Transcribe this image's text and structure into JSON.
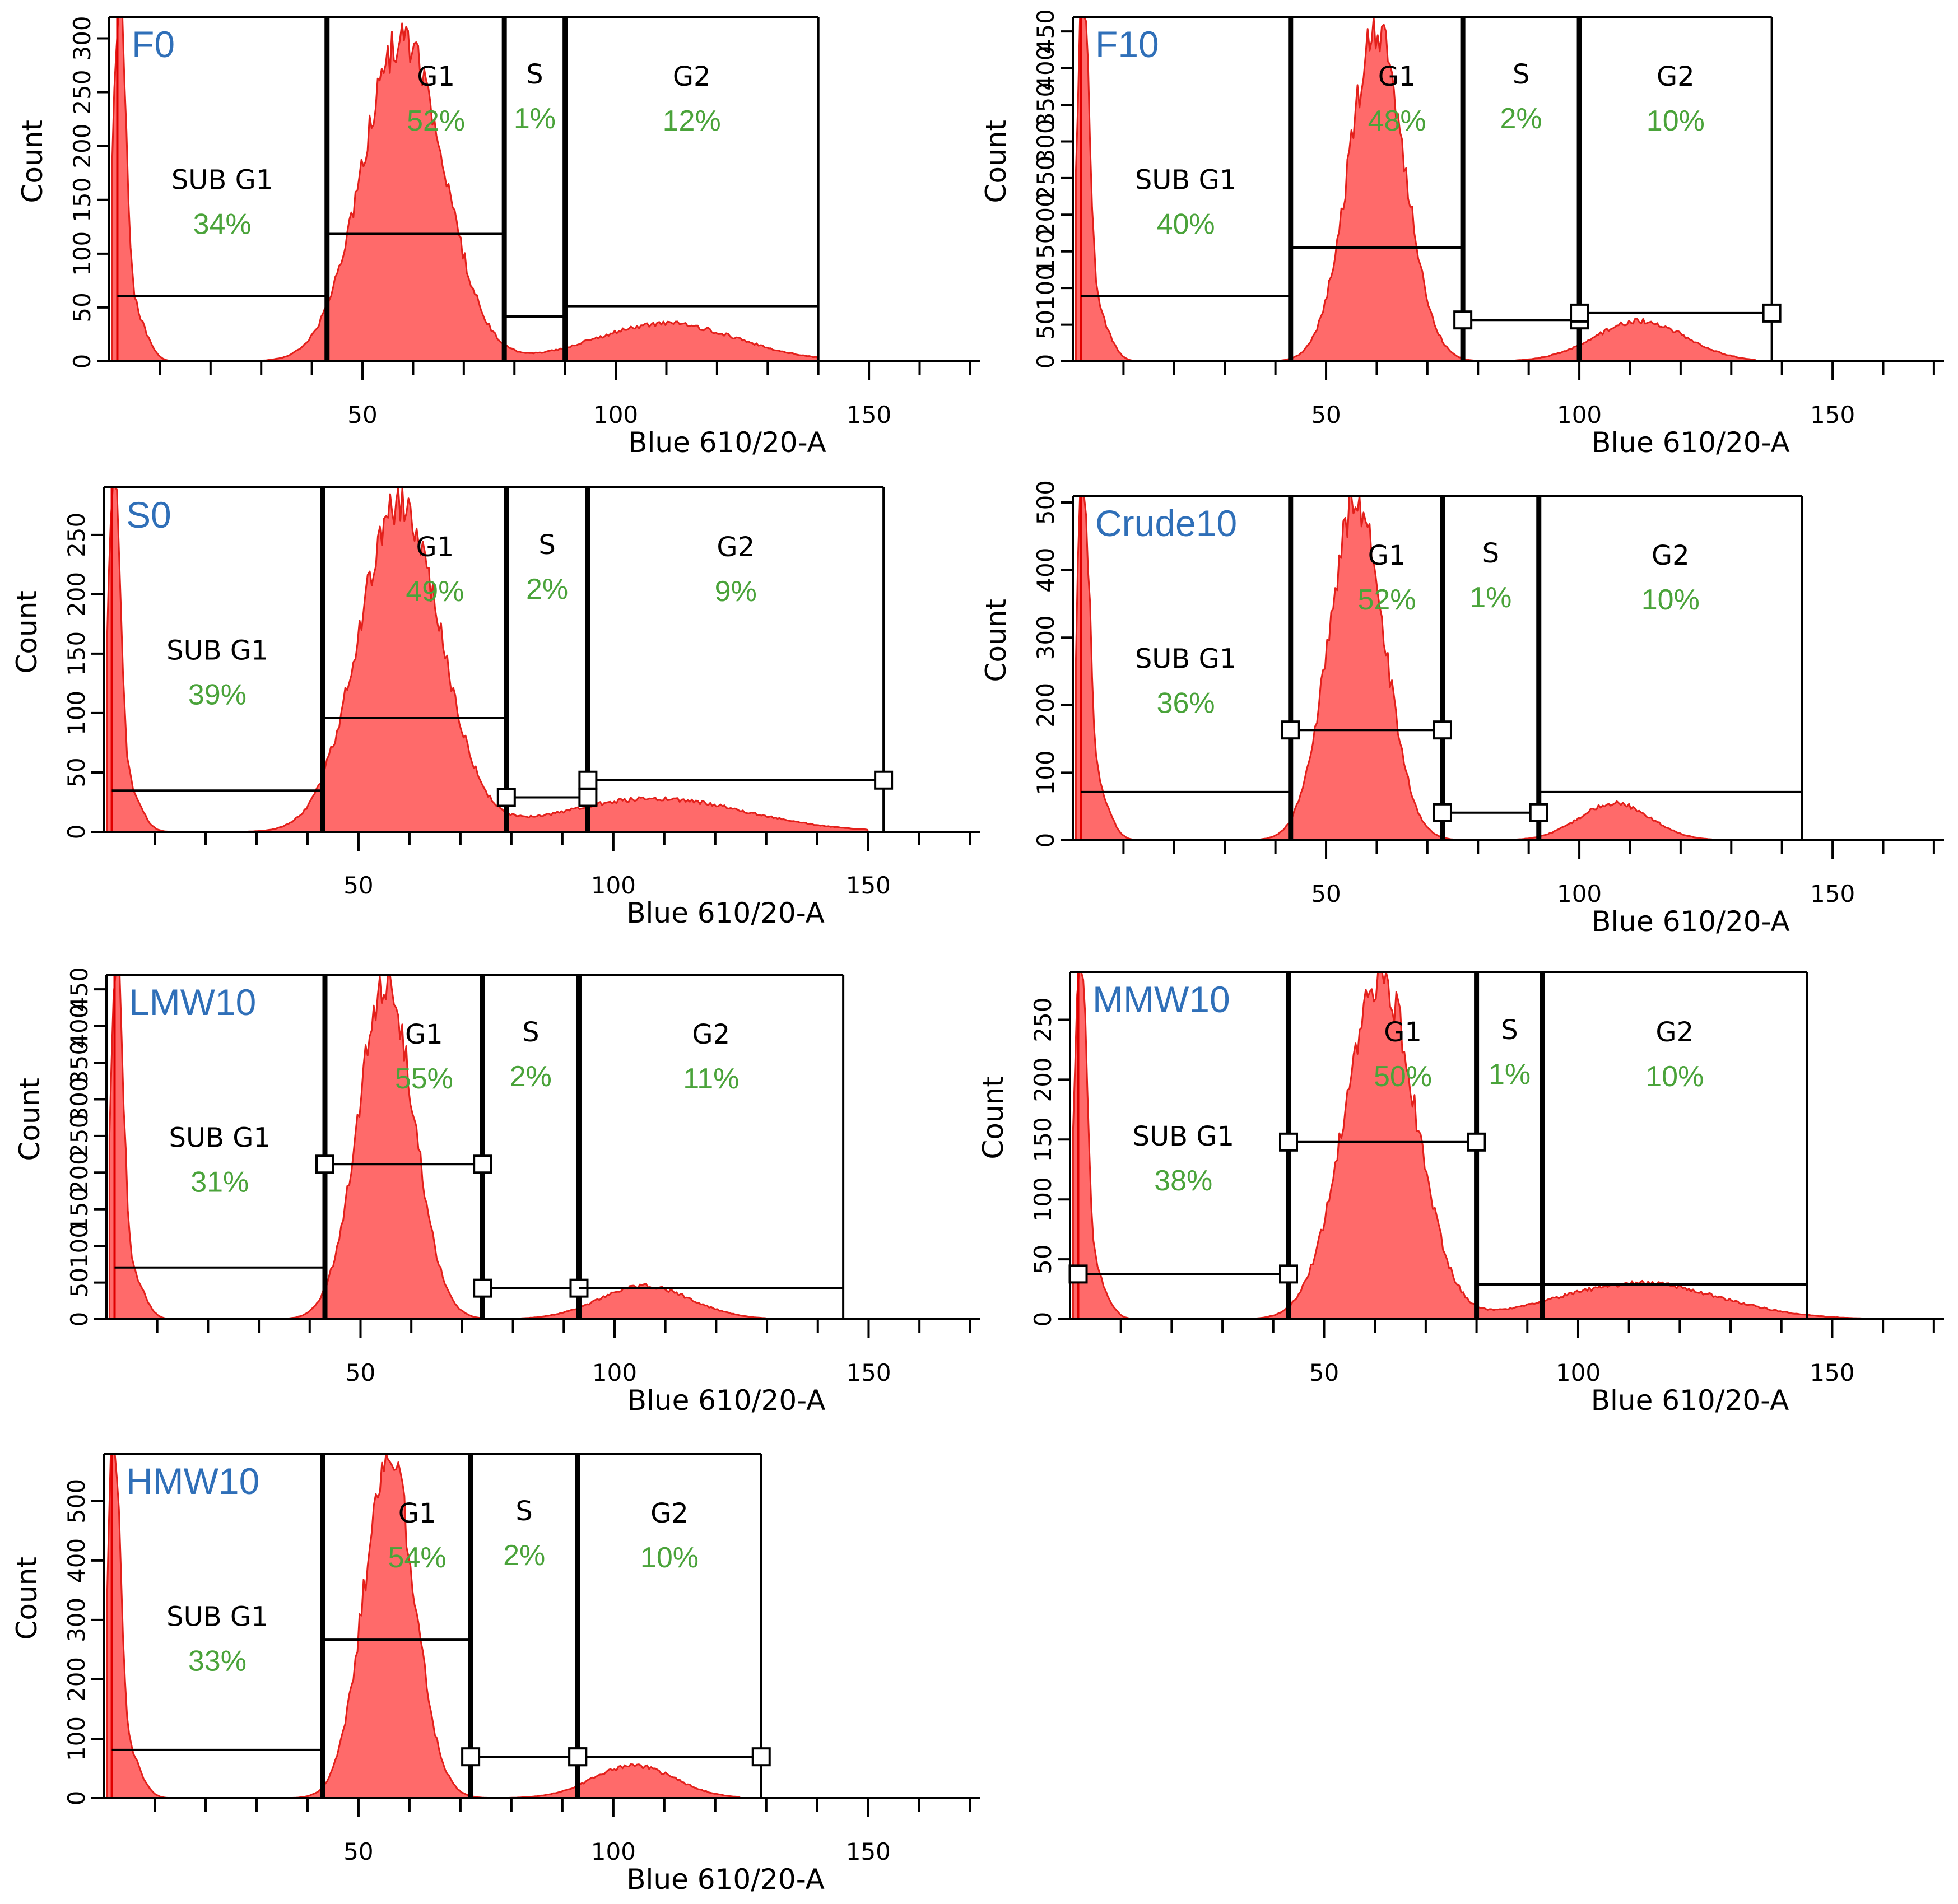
{
  "colors": {
    "fill": "#ff6a6a",
    "outline": "#e3201b",
    "title": "#2f6fb8",
    "percent": "#4aa33a"
  },
  "chart_data": [
    {
      "type": "area",
      "title": "F0",
      "xlabel": "Blue 610/20-A",
      "ylabel": "Count",
      "xlim": [
        0,
        172
      ],
      "ylim": [
        0,
        320
      ],
      "xticks": [
        50,
        100,
        150
      ],
      "yticks": [
        0,
        50,
        100,
        150,
        200,
        250,
        300
      ],
      "peaks": [
        {
          "mu": 2,
          "sigma": 1.2,
          "amp": 320
        },
        {
          "mu": 4.5,
          "sigma": 2.5,
          "amp": 50
        },
        {
          "mu": 58,
          "sigma": 8,
          "amp": 300
        },
        {
          "mu": 110,
          "sigma": 14,
          "amp": 35
        }
      ],
      "x_end": 140,
      "gate_lines": [
        43,
        78,
        90,
        140
      ],
      "gates": [
        {
          "name": "SUB G1",
          "percent": "34%"
        },
        {
          "name": "G1",
          "percent": "52%"
        },
        {
          "name": "S",
          "percent": "1%"
        },
        {
          "name": "G2",
          "percent": "12%"
        }
      ]
    },
    {
      "type": "area",
      "title": "F10",
      "xlabel": "Blue 610/20-A",
      "ylabel": "Count",
      "xlim": [
        0,
        172
      ],
      "ylim": [
        0,
        470
      ],
      "xticks": [
        50,
        100,
        150
      ],
      "yticks": [
        0,
        50,
        100,
        150,
        200,
        250,
        300,
        350,
        400,
        450
      ],
      "peaks": [
        {
          "mu": 2,
          "sigma": 1.2,
          "amp": 470
        },
        {
          "mu": 4.5,
          "sigma": 2.5,
          "amp": 70
        },
        {
          "mu": 60,
          "sigma": 5.5,
          "amp": 450
        },
        {
          "mu": 112,
          "sigma": 9,
          "amp": 55
        }
      ],
      "x_end": 135,
      "gate_lines": [
        43,
        77,
        100,
        138
      ],
      "gates": [
        {
          "name": "SUB G1",
          "percent": "40%"
        },
        {
          "name": "G1",
          "percent": "48%"
        },
        {
          "name": "S",
          "percent": "2%"
        },
        {
          "name": "G2",
          "percent": "10%"
        }
      ]
    },
    {
      "type": "area",
      "title": "S0",
      "xlabel": "Blue 610/20-A",
      "ylabel": "Count",
      "xlim": [
        0,
        172
      ],
      "ylim": [
        0,
        290
      ],
      "xticks": [
        50,
        100,
        150
      ],
      "yticks": [
        0,
        50,
        100,
        150,
        200,
        250
      ],
      "peaks": [
        {
          "mu": 2,
          "sigma": 1.2,
          "amp": 290
        },
        {
          "mu": 4.5,
          "sigma": 2.5,
          "amp": 40
        },
        {
          "mu": 58,
          "sigma": 8,
          "amp": 275
        },
        {
          "mu": 108,
          "sigma": 18,
          "amp": 28
        }
      ],
      "x_end": 150,
      "gate_lines": [
        43,
        79,
        95,
        153
      ],
      "gates": [
        {
          "name": "SUB G1",
          "percent": "39%"
        },
        {
          "name": "G1",
          "percent": "49%"
        },
        {
          "name": "S",
          "percent": "2%"
        },
        {
          "name": "G2",
          "percent": "9%"
        }
      ]
    },
    {
      "type": "area",
      "title": "Crude10",
      "xlabel": "Blue 610/20-A",
      "ylabel": "Count",
      "xlim": [
        0,
        172
      ],
      "ylim": [
        0,
        510
      ],
      "xticks": [
        50,
        100,
        150
      ],
      "yticks": [
        0,
        100,
        200,
        300,
        400,
        500
      ],
      "peaks": [
        {
          "mu": 2,
          "sigma": 1.2,
          "amp": 510
        },
        {
          "mu": 4.5,
          "sigma": 2.5,
          "amp": 80
        },
        {
          "mu": 56,
          "sigma": 5.5,
          "amp": 500
        },
        {
          "mu": 107,
          "sigma": 7,
          "amp": 55
        }
      ],
      "x_end": 128,
      "gate_lines": [
        43,
        73,
        92,
        144
      ],
      "gates": [
        {
          "name": "SUB G1",
          "percent": "36%"
        },
        {
          "name": "G1",
          "percent": "52%"
        },
        {
          "name": "S",
          "percent": "1%"
        },
        {
          "name": "G2",
          "percent": "10%"
        }
      ]
    },
    {
      "type": "area",
      "title": "LMW10",
      "xlabel": "Blue 610/20-A",
      "ylabel": "Count",
      "xlim": [
        0,
        172
      ],
      "ylim": [
        0,
        470
      ],
      "xticks": [
        50,
        100,
        150
      ],
      "yticks": [
        0,
        50,
        100,
        150,
        200,
        250,
        300,
        350,
        400,
        450
      ],
      "peaks": [
        {
          "mu": 2,
          "sigma": 1.2,
          "amp": 470
        },
        {
          "mu": 4.5,
          "sigma": 2.5,
          "amp": 70
        },
        {
          "mu": 55,
          "sigma": 5.5,
          "amp": 460
        },
        {
          "mu": 106,
          "sigma": 9,
          "amp": 45
        }
      ],
      "x_end": 130,
      "gate_lines": [
        43,
        74,
        93,
        145
      ],
      "gates": [
        {
          "name": "SUB G1",
          "percent": "31%"
        },
        {
          "name": "G1",
          "percent": "55%"
        },
        {
          "name": "S",
          "percent": "2%"
        },
        {
          "name": "G2",
          "percent": "11%"
        }
      ]
    },
    {
      "type": "area",
      "title": "MMW10",
      "xlabel": "Blue 610/20-A",
      "ylabel": "Count",
      "xlim": [
        0,
        172
      ],
      "ylim": [
        0,
        290
      ],
      "xticks": [
        50,
        100,
        150
      ],
      "yticks": [
        0,
        50,
        100,
        150,
        200,
        250
      ],
      "peaks": [
        {
          "mu": 2,
          "sigma": 1.2,
          "amp": 290
        },
        {
          "mu": 4.5,
          "sigma": 2.5,
          "amp": 40
        },
        {
          "mu": 61,
          "sigma": 7,
          "amp": 285
        },
        {
          "mu": 112,
          "sigma": 16,
          "amp": 30
        }
      ],
      "x_end": 162,
      "gate_lines": [
        43,
        80,
        93,
        145
      ],
      "gates": [
        {
          "name": "SUB G1",
          "percent": "38%"
        },
        {
          "name": "G1",
          "percent": "50%"
        },
        {
          "name": "S",
          "percent": "1%"
        },
        {
          "name": "G2",
          "percent": "10%"
        }
      ]
    },
    {
      "type": "area",
      "title": "HMW10",
      "xlabel": "Blue 610/20-A",
      "ylabel": "Count",
      "xlim": [
        0,
        172
      ],
      "ylim": [
        0,
        580
      ],
      "xticks": [
        50,
        100,
        150
      ],
      "yticks": [
        0,
        100,
        200,
        300,
        400,
        500
      ],
      "peaks": [
        {
          "mu": 2,
          "sigma": 1.2,
          "amp": 580
        },
        {
          "mu": 4.5,
          "sigma": 2.5,
          "amp": 85
        },
        {
          "mu": 56,
          "sigma": 5,
          "amp": 570
        },
        {
          "mu": 104,
          "sigma": 8,
          "amp": 55
        }
      ],
      "x_end": 125,
      "gate_lines": [
        43,
        72,
        93,
        129
      ],
      "gates": [
        {
          "name": "SUB G1",
          "percent": "33%"
        },
        {
          "name": "G1",
          "percent": "54%"
        },
        {
          "name": "S",
          "percent": "2%"
        },
        {
          "name": "G2",
          "percent": "10%"
        }
      ]
    }
  ]
}
